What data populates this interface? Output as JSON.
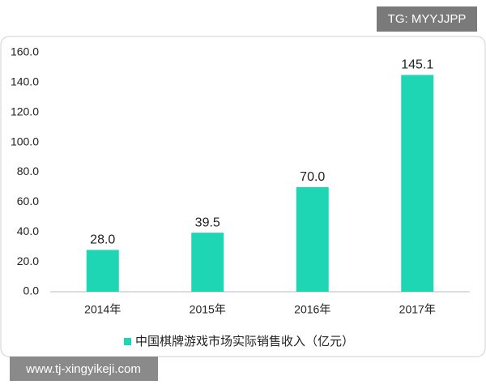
{
  "chart_data": {
    "type": "bar",
    "categories": [
      "2014年",
      "2015年",
      "2016年",
      "2017年"
    ],
    "series": [
      {
        "name": "中国棋牌游戏市场实际销售收入（亿元）",
        "color": "#1fd6b4",
        "values": [
          28.0,
          39.5,
          70.0,
          145.1
        ],
        "value_labels": [
          "28.0",
          "39.5",
          "70.0",
          "145.1"
        ]
      }
    ],
    "ylim": [
      0,
      160
    ],
    "yticks": [
      {
        "value": 0,
        "label": "0.0"
      },
      {
        "value": 20,
        "label": "20.0"
      },
      {
        "value": 40,
        "label": "40.0"
      },
      {
        "value": 60,
        "label": "60.0"
      },
      {
        "value": 80,
        "label": "80.0"
      },
      {
        "value": 100,
        "label": "100.0"
      },
      {
        "value": 120,
        "label": "120.0"
      },
      {
        "value": 140,
        "label": "140.0"
      },
      {
        "value": 160,
        "label": "160.0"
      }
    ],
    "grid": false,
    "legend": "bottom",
    "watermarks": [
      "TG: MYYJJPP",
      "www.tj-xingyikeji.com"
    ]
  }
}
